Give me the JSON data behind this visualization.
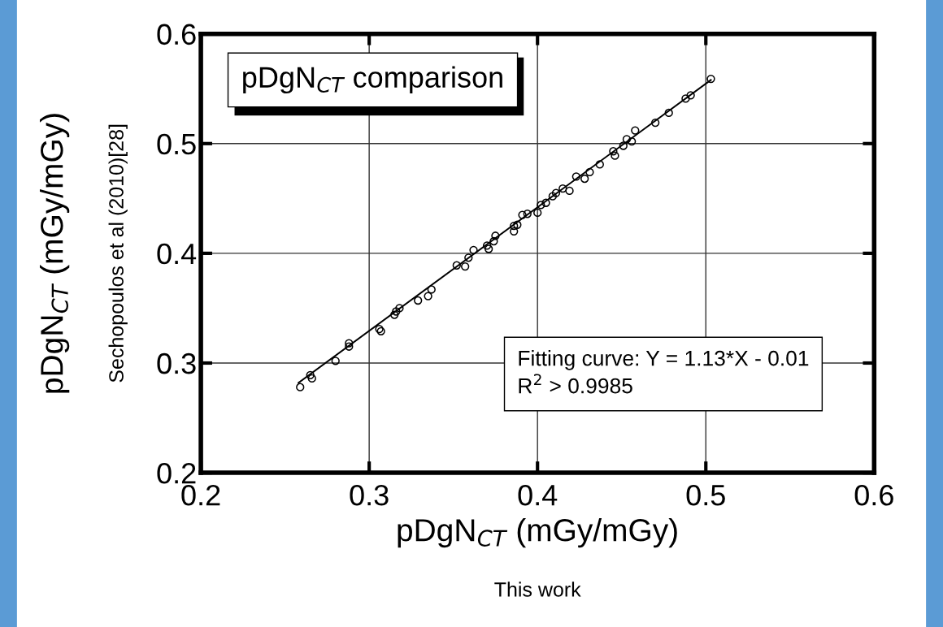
{
  "chart_data": {
    "type": "scatter",
    "title": "pDgN$_{CT}$ comparison",
    "xlabel": "pDgN$_{CT}$ (mGy/mGy)",
    "ylabel": "pDgN$_{CT}$ (mGy/mGy)",
    "annotations": [
      "Sechopoulos et al (2010)[28]",
      "This work",
      "Fitting curve: Y = 1.13*X - 0.01",
      "R$^{2}$ > 0.9985"
    ],
    "xlim": [
      0.2,
      0.6
    ],
    "ylim": [
      0.2,
      0.6
    ],
    "xticks": [
      0.2,
      0.3,
      0.4,
      0.5,
      0.6
    ],
    "yticks": [
      0.2,
      0.3,
      0.4,
      0.5,
      0.6
    ],
    "grid": true,
    "legend": false,
    "series": [
      {
        "color": "#000000",
        "marker": "circle",
        "x": [
          0.259,
          0.265,
          0.266,
          0.28,
          0.288,
          0.288,
          0.306,
          0.307,
          0.315,
          0.318,
          0.316,
          0.329,
          0.335,
          0.337,
          0.352,
          0.357,
          0.359,
          0.362,
          0.37,
          0.371,
          0.375,
          0.374,
          0.386,
          0.386,
          0.388,
          0.391,
          0.394,
          0.4,
          0.402,
          0.405,
          0.409,
          0.411,
          0.415,
          0.419,
          0.423,
          0.428,
          0.431,
          0.437,
          0.445,
          0.446,
          0.451,
          0.453,
          0.456,
          0.458,
          0.47,
          0.478,
          0.488,
          0.491,
          0.503
        ],
        "values": [
          0.278,
          0.289,
          0.286,
          0.302,
          0.315,
          0.318,
          0.331,
          0.329,
          0.344,
          0.35,
          0.347,
          0.357,
          0.361,
          0.367,
          0.389,
          0.388,
          0.396,
          0.403,
          0.407,
          0.404,
          0.416,
          0.411,
          0.425,
          0.42,
          0.426,
          0.435,
          0.436,
          0.437,
          0.444,
          0.446,
          0.452,
          0.455,
          0.459,
          0.457,
          0.47,
          0.468,
          0.474,
          0.481,
          0.493,
          0.489,
          0.498,
          0.504,
          0.502,
          0.512,
          0.519,
          0.528,
          0.541,
          0.544,
          0.559
        ]
      },
      {
        "type": "line",
        "color": "#000000",
        "line_style": "solid",
        "x": [
          0.258,
          0.503
        ],
        "values": [
          0.282,
          0.558
        ]
      }
    ]
  }
}
